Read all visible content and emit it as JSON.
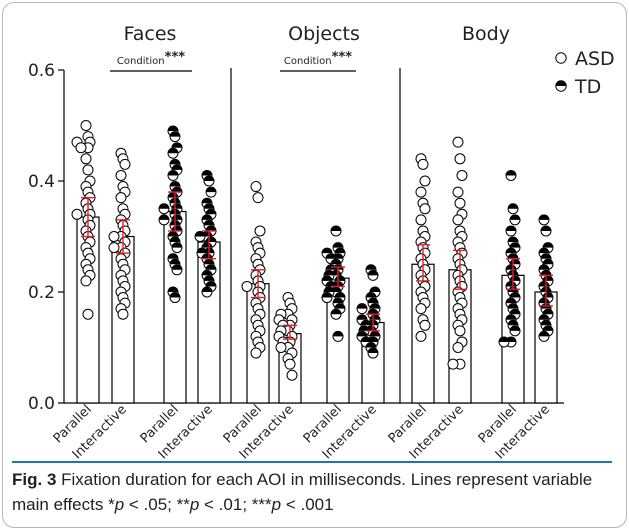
{
  "chart_data": {
    "type": "bar",
    "panels": [
      "Faces",
      "Objects",
      "Body"
    ],
    "effect_labels": [
      {
        "panel": "Faces",
        "text": "Condition",
        "stars": "***"
      },
      {
        "panel": "Objects",
        "text": "Condition",
        "stars": "***"
      }
    ],
    "categories": [
      "Parallel",
      "Interactive",
      "Parallel",
      "Interactive",
      "Parallel",
      "Interactive",
      "Parallel",
      "Interactive",
      "Parallel",
      "Interactive",
      "Parallel",
      "Interactive"
    ],
    "series": [
      {
        "name": "ASD",
        "marker": "open-circle"
      },
      {
        "name": "TD",
        "marker": "half-filled-circle"
      }
    ],
    "ylim": [
      0.0,
      0.6
    ],
    "yticks": [
      {
        "value": 0.0,
        "label": "0.0"
      },
      {
        "value": 0.2,
        "label": "0.2"
      },
      {
        "value": 0.4,
        "label": "0.4"
      },
      {
        "value": 0.6,
        "label": "0.6"
      }
    ],
    "bars": [
      {
        "panel": "Faces",
        "group": "ASD",
        "condition": "Parallel",
        "mean": 0.335,
        "ci": [
          0.3,
          0.37
        ],
        "points": [
          0.5,
          0.48,
          0.47,
          0.47,
          0.46,
          0.46,
          0.44,
          0.42,
          0.4,
          0.39,
          0.38,
          0.37,
          0.36,
          0.35,
          0.34,
          0.34,
          0.33,
          0.32,
          0.31,
          0.3,
          0.29,
          0.28,
          0.27,
          0.26,
          0.25,
          0.24,
          0.23,
          0.22,
          0.16
        ]
      },
      {
        "panel": "Faces",
        "group": "ASD",
        "condition": "Interactive",
        "mean": 0.3,
        "ci": [
          0.27,
          0.33
        ],
        "points": [
          0.45,
          0.44,
          0.43,
          0.41,
          0.39,
          0.38,
          0.37,
          0.35,
          0.34,
          0.33,
          0.32,
          0.31,
          0.3,
          0.3,
          0.29,
          0.28,
          0.28,
          0.27,
          0.26,
          0.25,
          0.24,
          0.23,
          0.22,
          0.21,
          0.2,
          0.19,
          0.18,
          0.17,
          0.16
        ]
      },
      {
        "panel": "Faces",
        "group": "TD",
        "condition": "Parallel",
        "mean": 0.345,
        "ci": [
          0.31,
          0.38
        ],
        "points": [
          0.49,
          0.48,
          0.46,
          0.45,
          0.43,
          0.42,
          0.41,
          0.39,
          0.38,
          0.37,
          0.36,
          0.35,
          0.35,
          0.34,
          0.33,
          0.33,
          0.32,
          0.31,
          0.3,
          0.29,
          0.28,
          0.26,
          0.25,
          0.24,
          0.2,
          0.19
        ]
      },
      {
        "panel": "Faces",
        "group": "TD",
        "condition": "Interactive",
        "mean": 0.29,
        "ci": [
          0.26,
          0.31
        ],
        "points": [
          0.41,
          0.4,
          0.38,
          0.36,
          0.35,
          0.34,
          0.33,
          0.32,
          0.31,
          0.3,
          0.3,
          0.29,
          0.28,
          0.27,
          0.27,
          0.26,
          0.25,
          0.24,
          0.23,
          0.22,
          0.21,
          0.2
        ]
      },
      {
        "panel": "Objects",
        "group": "ASD",
        "condition": "Parallel",
        "mean": 0.215,
        "ci": [
          0.19,
          0.24
        ],
        "points": [
          0.39,
          0.37,
          0.31,
          0.29,
          0.28,
          0.27,
          0.26,
          0.25,
          0.24,
          0.23,
          0.22,
          0.21,
          0.21,
          0.2,
          0.19,
          0.18,
          0.17,
          0.16,
          0.15,
          0.14,
          0.13,
          0.12,
          0.11,
          0.1,
          0.09
        ]
      },
      {
        "panel": "Objects",
        "group": "ASD",
        "condition": "Interactive",
        "mean": 0.125,
        "ci": [
          0.115,
          0.14
        ],
        "points": [
          0.19,
          0.18,
          0.17,
          0.16,
          0.16,
          0.15,
          0.15,
          0.14,
          0.14,
          0.13,
          0.13,
          0.12,
          0.12,
          0.11,
          0.11,
          0.1,
          0.1,
          0.09,
          0.08,
          0.07,
          0.05
        ]
      },
      {
        "panel": "Objects",
        "group": "TD",
        "condition": "Parallel",
        "mean": 0.225,
        "ci": [
          0.21,
          0.245
        ],
        "points": [
          0.31,
          0.28,
          0.27,
          0.27,
          0.26,
          0.26,
          0.25,
          0.24,
          0.24,
          0.23,
          0.23,
          0.22,
          0.22,
          0.21,
          0.21,
          0.2,
          0.2,
          0.19,
          0.19,
          0.18,
          0.17,
          0.16,
          0.12
        ]
      },
      {
        "panel": "Objects",
        "group": "TD",
        "condition": "Interactive",
        "mean": 0.145,
        "ci": [
          0.13,
          0.16
        ],
        "points": [
          0.24,
          0.23,
          0.2,
          0.19,
          0.18,
          0.17,
          0.17,
          0.16,
          0.15,
          0.15,
          0.14,
          0.14,
          0.13,
          0.13,
          0.12,
          0.12,
          0.11,
          0.11,
          0.1,
          0.09
        ]
      },
      {
        "panel": "Body",
        "group": "ASD",
        "condition": "Parallel",
        "mean": 0.25,
        "ci": [
          0.22,
          0.285
        ],
        "points": [
          0.44,
          0.43,
          0.4,
          0.38,
          0.36,
          0.35,
          0.33,
          0.31,
          0.3,
          0.29,
          0.28,
          0.27,
          0.26,
          0.25,
          0.24,
          0.23,
          0.22,
          0.21,
          0.2,
          0.19,
          0.18,
          0.17,
          0.15,
          0.14,
          0.12
        ]
      },
      {
        "panel": "Body",
        "group": "ASD",
        "condition": "Interactive",
        "mean": 0.24,
        "ci": [
          0.205,
          0.275
        ],
        "points": [
          0.47,
          0.44,
          0.41,
          0.38,
          0.36,
          0.34,
          0.33,
          0.31,
          0.3,
          0.29,
          0.28,
          0.27,
          0.26,
          0.25,
          0.24,
          0.23,
          0.22,
          0.21,
          0.2,
          0.19,
          0.18,
          0.17,
          0.16,
          0.15,
          0.14,
          0.13,
          0.11,
          0.1,
          0.07,
          0.07
        ]
      },
      {
        "panel": "Body",
        "group": "TD",
        "condition": "Parallel",
        "mean": 0.23,
        "ci": [
          0.205,
          0.26
        ],
        "points": [
          0.41,
          0.35,
          0.33,
          0.31,
          0.29,
          0.28,
          0.27,
          0.26,
          0.25,
          0.24,
          0.23,
          0.22,
          0.21,
          0.2,
          0.19,
          0.18,
          0.17,
          0.16,
          0.15,
          0.14,
          0.13,
          0.11,
          0.11
        ]
      },
      {
        "panel": "Body",
        "group": "TD",
        "condition": "Interactive",
        "mean": 0.2,
        "ci": [
          0.175,
          0.23
        ],
        "points": [
          0.33,
          0.31,
          0.28,
          0.27,
          0.26,
          0.25,
          0.24,
          0.23,
          0.22,
          0.21,
          0.2,
          0.19,
          0.18,
          0.17,
          0.16,
          0.15,
          0.14,
          0.13,
          0.12
        ]
      }
    ]
  },
  "caption": {
    "label": "Fig. 3",
    "text_before": "Fixation duration for each AOI in milliseconds. Lines represent variable main effects *",
    "p1": "p",
    "t1": " < .05; **",
    "p2": "p",
    "t2": " < .01; ***",
    "p3": "p",
    "t3": " < .001"
  },
  "colors": {
    "ci": "#e41e26",
    "marker": "#000000",
    "bar_fill": "#ffffff",
    "axis": "#000000",
    "caption_rule": "#1b75bb"
  }
}
